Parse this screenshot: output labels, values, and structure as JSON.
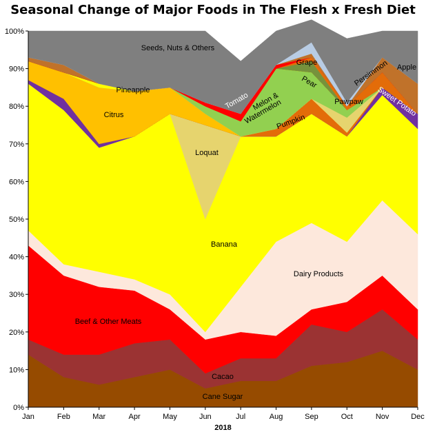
{
  "chart_data": {
    "type": "area",
    "title": "Seasonal Change of Major Foods in The Flesh x Fresh Diet",
    "xlabel": "2018",
    "ylabel": "",
    "ylim": [
      0,
      100
    ],
    "y_ticks": [
      "0%",
      "10%",
      "20%",
      "30%",
      "40%",
      "50%",
      "60%",
      "70%",
      "80%",
      "90%",
      "100%"
    ],
    "categories": [
      "Jan",
      "Feb",
      "Mar",
      "Apr",
      "May",
      "Jun",
      "Jul",
      "Aug",
      "Sep",
      "Oct",
      "Nov",
      "Dec"
    ],
    "stacked": true,
    "percent": true,
    "grid": false,
    "legend": "none",
    "series": [
      {
        "name": "Cane Sugar",
        "color": "#964B00",
        "values": [
          14,
          8,
          6,
          8,
          10,
          5,
          7,
          7,
          11,
          12,
          15,
          10
        ]
      },
      {
        "name": "Cacao",
        "color": "#9B3333",
        "values": [
          4,
          6,
          8,
          9,
          8,
          4,
          6,
          6,
          11,
          8,
          11,
          8
        ]
      },
      {
        "name": "Beef & Other Meats",
        "color": "#FF0000",
        "values": [
          25,
          21,
          18,
          14,
          8,
          9,
          7,
          6,
          4,
          8,
          9,
          8
        ]
      },
      {
        "name": "Dairy Products",
        "color": "#FDE8DC",
        "values": [
          4,
          3,
          4,
          3,
          4,
          2,
          12,
          25,
          23,
          16,
          20,
          20
        ]
      },
      {
        "name": "Banana",
        "color": "#FFFF00",
        "values": [
          39,
          41,
          33,
          38,
          48,
          30,
          40,
          28,
          29,
          28,
          28,
          28
        ]
      },
      {
        "name": "Loquat",
        "color": "#E6D46E",
        "values": [
          0,
          0,
          0,
          0,
          0,
          25,
          0,
          0,
          0,
          0,
          0,
          0
        ]
      },
      {
        "name": "Sweet Potato",
        "color": "#7030A0",
        "values": [
          1,
          3,
          1,
          0,
          0,
          0,
          0,
          0,
          0,
          0,
          2,
          4
        ]
      },
      {
        "name": "Pumpkin",
        "color": "#E36C09",
        "values": [
          0,
          0,
          0,
          0,
          0,
          0,
          0,
          2,
          4,
          1,
          0,
          0
        ]
      },
      {
        "name": "Citrus",
        "color": "#FFC000",
        "values": [
          5,
          7,
          15,
          12,
          7,
          3,
          0,
          0,
          0,
          0,
          0,
          0
        ]
      },
      {
        "name": "Pawpaw",
        "color": "#E6D46E",
        "values": [
          0,
          0,
          0,
          0,
          0,
          0,
          0,
          0,
          0,
          4,
          0,
          0
        ]
      },
      {
        "name": "Melon & Watermelon",
        "color": "#92D050",
        "values": [
          0,
          0,
          0,
          0,
          0,
          2,
          4,
          16,
          7,
          2,
          0,
          0
        ]
      },
      {
        "name": "Pineapple",
        "color": "#FFFF00",
        "values": [
          0,
          0,
          1,
          0,
          0,
          0,
          0,
          0,
          0,
          0,
          0,
          0
        ]
      },
      {
        "name": "Pear",
        "color": "#76923C",
        "values": [
          0,
          0,
          0,
          0,
          0,
          0,
          0,
          0,
          3,
          0,
          0,
          0
        ]
      },
      {
        "name": "Persimmon",
        "color": "#E36C09",
        "values": [
          0,
          0,
          0,
          0,
          0,
          0,
          0,
          0,
          1,
          1,
          4,
          0
        ]
      },
      {
        "name": "Tomato",
        "color": "#FF0000",
        "values": [
          0,
          0,
          0,
          0,
          0,
          1,
          2,
          1,
          0,
          0,
          0,
          0
        ]
      },
      {
        "name": "Apple",
        "color": "#C0722A",
        "values": [
          1,
          2,
          0,
          0,
          0,
          0,
          0,
          0,
          1,
          0,
          4,
          8
        ]
      },
      {
        "name": "Grape",
        "color": "#B8CCE4",
        "values": [
          0,
          0,
          0,
          0,
          0,
          0,
          0,
          0,
          3,
          1,
          0,
          0
        ]
      },
      {
        "name": "Seeds, Nuts & Others",
        "color": "#7F7F7F",
        "values": [
          7,
          9,
          14,
          16,
          15,
          19,
          14,
          9,
          6,
          17,
          7,
          14
        ]
      }
    ],
    "labels": [
      {
        "text": "Seeds, Nuts & Others",
        "rotate": 0,
        "color": "#000000"
      },
      {
        "text": "Citrus",
        "rotate": 0,
        "color": "#000000"
      },
      {
        "text": "Pineapple",
        "rotate": 0,
        "color": "#000000"
      },
      {
        "text": "Loquat",
        "rotate": 0,
        "color": "#000000"
      },
      {
        "text": "Banana",
        "rotate": 0,
        "color": "#000000"
      },
      {
        "text": "Dairy Products",
        "rotate": 0,
        "color": "#000000"
      },
      {
        "text": "Beef & Other Meats",
        "rotate": 0,
        "color": "#000000"
      },
      {
        "text": "Cacao",
        "rotate": 0,
        "color": "#000000"
      },
      {
        "text": "Cane Sugar",
        "rotate": 0,
        "color": "#000000"
      },
      {
        "text": "Tomato",
        "rotate": -30,
        "color": "#FFFFFF"
      },
      {
        "text": "Melon &",
        "rotate": -30,
        "color": "#000000"
      },
      {
        "text": "Watermelon",
        "rotate": -30,
        "color": "#000000"
      },
      {
        "text": "Pumpkin",
        "rotate": -20,
        "color": "#000000"
      },
      {
        "text": "Grape",
        "rotate": 0,
        "color": "#000000"
      },
      {
        "text": "Pear",
        "rotate": 30,
        "color": "#000000"
      },
      {
        "text": "Pawpaw",
        "rotate": 0,
        "color": "#000000"
      },
      {
        "text": "Persimmon",
        "rotate": -35,
        "color": "#000000"
      },
      {
        "text": "Apple",
        "rotate": 0,
        "color": "#000000"
      },
      {
        "text": "Sweet Potato",
        "rotate": 35,
        "color": "#FFFFFF"
      }
    ]
  }
}
